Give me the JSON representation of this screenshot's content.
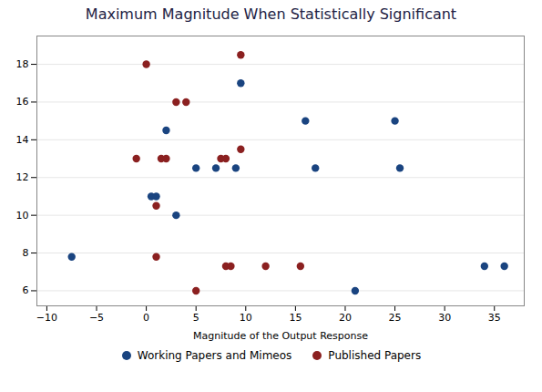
{
  "chart_data": {
    "type": "scatter",
    "title": "Maximum Magnitude When Statistically Significant",
    "xlabel": "Magnitude of the Output Response",
    "xlim": [
      -11,
      38
    ],
    "ylim": [
      5.2,
      19.5
    ],
    "xticks": [
      -10,
      -5,
      0,
      5,
      10,
      15,
      20,
      25,
      30,
      35
    ],
    "yticks": [
      6,
      8,
      10,
      12,
      14,
      16,
      18
    ],
    "grid": "y",
    "legend": "bottom",
    "series": [
      {
        "name": "Working Papers and Mimeos",
        "color": "#1a4480",
        "marker": "circle",
        "x": [
          -7.5,
          0.5,
          1.0,
          2.0,
          3.0,
          5.0,
          7.0,
          9.0,
          9.5,
          16.0,
          17.0,
          21.0,
          25.0,
          25.5,
          34.0,
          36.0
        ],
        "y": [
          7.8,
          11.0,
          11.0,
          14.5,
          10.0,
          12.5,
          12.5,
          12.5,
          17.0,
          15.0,
          12.5,
          6.0,
          15.0,
          12.5,
          7.3,
          7.3
        ]
      },
      {
        "name": "Published Papers",
        "color": "#8b2020",
        "marker": "circle",
        "x": [
          0.0,
          -1.0,
          1.0,
          1.5,
          2.0,
          3.0,
          4.0,
          5.0,
          7.5,
          8.0,
          8.0,
          8.5,
          9.5,
          9.5,
          12.0,
          15.5,
          1.0
        ],
        "y": [
          18.0,
          13.0,
          10.5,
          13.0,
          13.0,
          16.0,
          16.0,
          6.0,
          13.0,
          13.0,
          7.3,
          7.3,
          18.5,
          13.5,
          7.3,
          7.3,
          7.8
        ]
      }
    ]
  }
}
